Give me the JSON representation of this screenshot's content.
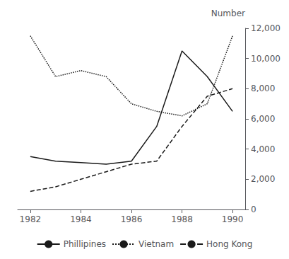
{
  "chart_data": {
    "type": "line",
    "ylabel": "Number",
    "x": [
      1982,
      1983,
      1984,
      1985,
      1986,
      1987,
      1988,
      1989,
      1990
    ],
    "series": [
      {
        "name": "Phillipines",
        "color": "#1a1a1a",
        "line_style": "solid",
        "values": [
          3500,
          3200,
          3100,
          3000,
          3200,
          5500,
          10500,
          8800,
          6500
        ]
      },
      {
        "name": "Vietnam",
        "color": "#1a1a1a",
        "line_style": "dotted",
        "values": [
          11500,
          8800,
          9200,
          8800,
          7000,
          6500,
          6200,
          7000,
          11500
        ]
      },
      {
        "name": "Hong Kong",
        "color": "#1a1a1a",
        "line_style": "dashed",
        "values": [
          1200,
          1500,
          2000,
          2500,
          3000,
          3200,
          5500,
          7500,
          8000
        ]
      }
    ],
    "xlim": [
      1981.5,
      1990.5
    ],
    "xticks": [
      1982,
      1984,
      1986,
      1988,
      1990
    ],
    "ylim": [
      0,
      12000
    ],
    "yticks": [
      0,
      {
        "value": 2000,
        "label": "2,000"
      },
      {
        "value": 4000,
        "label": "4,000"
      },
      {
        "value": 6000,
        "label": "6,000"
      },
      {
        "value": 8000,
        "label": "8,000"
      },
      {
        "value": 10000,
        "label": "10,000"
      },
      {
        "value": 12000,
        "label": "12,000"
      }
    ],
    "grid": false,
    "legend": "bottom"
  }
}
